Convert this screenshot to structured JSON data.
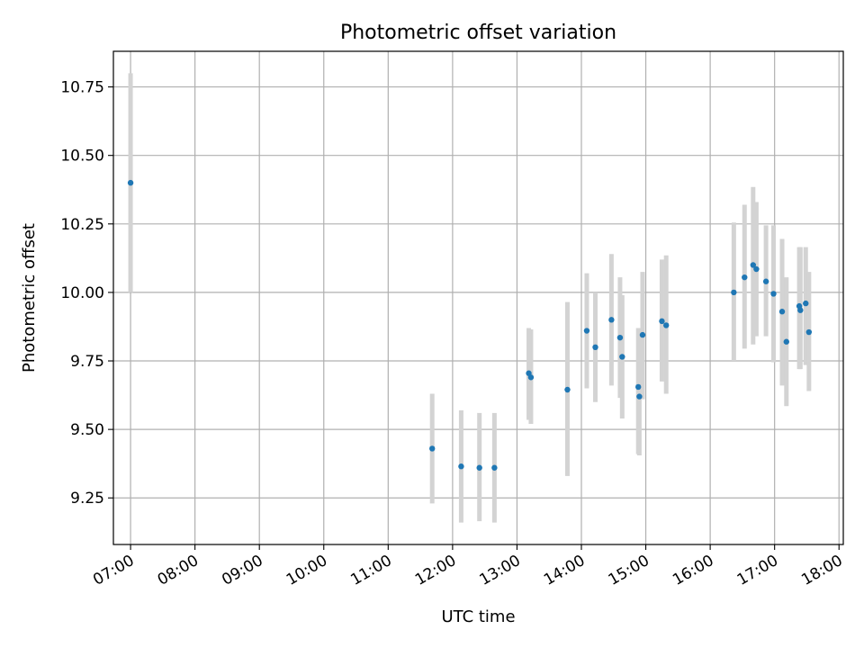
{
  "chart_data": {
    "type": "scatter",
    "title": "Photometric offset variation",
    "xlabel": "UTC time",
    "ylabel": "Photometric offset",
    "xlim": [
      "06:44",
      "18:04"
    ],
    "ylim": [
      9.08,
      10.88
    ],
    "grid": true,
    "x_ticks": [
      "07:00",
      "08:00",
      "09:00",
      "10:00",
      "11:00",
      "12:00",
      "13:00",
      "14:00",
      "15:00",
      "16:00",
      "17:00",
      "18:00"
    ],
    "y_ticks": [
      9.25,
      9.5,
      9.75,
      10.0,
      10.25,
      10.5,
      10.75
    ],
    "y_tick_labels": [
      "9.25",
      "9.50",
      "9.75",
      "10.00",
      "10.25",
      "10.50",
      "10.75"
    ],
    "marker_color": "#1f77b4",
    "errorbar_color": "#d3d3d3",
    "points": [
      {
        "x": "07:00",
        "y": 10.4,
        "ylow": 10.0,
        "yhigh": 10.8
      },
      {
        "x": "11:41",
        "y": 9.43,
        "ylow": 9.23,
        "yhigh": 9.63
      },
      {
        "x": "12:08",
        "y": 9.365,
        "ylow": 9.16,
        "yhigh": 9.57
      },
      {
        "x": "12:25",
        "y": 9.36,
        "ylow": 9.165,
        "yhigh": 9.56
      },
      {
        "x": "12:39",
        "y": 9.36,
        "ylow": 9.16,
        "yhigh": 9.56
      },
      {
        "x": "13:11",
        "y": 9.705,
        "ylow": 9.535,
        "yhigh": 9.87
      },
      {
        "x": "13:13",
        "y": 9.69,
        "ylow": 9.52,
        "yhigh": 9.865
      },
      {
        "x": "13:47",
        "y": 9.645,
        "ylow": 9.33,
        "yhigh": 9.965
      },
      {
        "x": "14:05",
        "y": 9.86,
        "ylow": 9.65,
        "yhigh": 10.07
      },
      {
        "x": "14:13",
        "y": 9.8,
        "ylow": 9.6,
        "yhigh": 10.0
      },
      {
        "x": "14:28",
        "y": 9.9,
        "ylow": 9.66,
        "yhigh": 10.14
      },
      {
        "x": "14:36",
        "y": 9.835,
        "ylow": 9.615,
        "yhigh": 10.055
      },
      {
        "x": "14:38",
        "y": 9.765,
        "ylow": 9.54,
        "yhigh": 9.99
      },
      {
        "x": "14:53",
        "y": 9.655,
        "ylow": 9.41,
        "yhigh": 9.87
      },
      {
        "x": "14:54",
        "y": 9.62,
        "ylow": 9.405,
        "yhigh": 9.835
      },
      {
        "x": "14:57",
        "y": 9.845,
        "ylow": 9.61,
        "yhigh": 10.075
      },
      {
        "x": "15:15",
        "y": 9.895,
        "ylow": 9.675,
        "yhigh": 10.12
      },
      {
        "x": "15:19",
        "y": 9.88,
        "ylow": 9.63,
        "yhigh": 10.135
      },
      {
        "x": "16:22",
        "y": 10.0,
        "ylow": 9.75,
        "yhigh": 10.255
      },
      {
        "x": "16:32",
        "y": 10.055,
        "ylow": 9.795,
        "yhigh": 10.32
      },
      {
        "x": "16:40",
        "y": 10.1,
        "ylow": 9.81,
        "yhigh": 10.385
      },
      {
        "x": "16:43",
        "y": 10.085,
        "ylow": 9.84,
        "yhigh": 10.33
      },
      {
        "x": "16:52",
        "y": 10.04,
        "ylow": 9.84,
        "yhigh": 10.245
      },
      {
        "x": "16:59",
        "y": 9.995,
        "ylow": 9.745,
        "yhigh": 10.245
      },
      {
        "x": "17:07",
        "y": 9.93,
        "ylow": 9.66,
        "yhigh": 10.195
      },
      {
        "x": "17:11",
        "y": 9.82,
        "ylow": 9.585,
        "yhigh": 10.055
      },
      {
        "x": "17:23",
        "y": 9.95,
        "ylow": 9.72,
        "yhigh": 10.165
      },
      {
        "x": "17:24",
        "y": 9.935,
        "ylow": 9.72,
        "yhigh": 10.165
      },
      {
        "x": "17:29",
        "y": 9.96,
        "ylow": 9.735,
        "yhigh": 10.165
      },
      {
        "x": "17:32",
        "y": 9.855,
        "ylow": 9.64,
        "yhigh": 10.075
      }
    ]
  }
}
